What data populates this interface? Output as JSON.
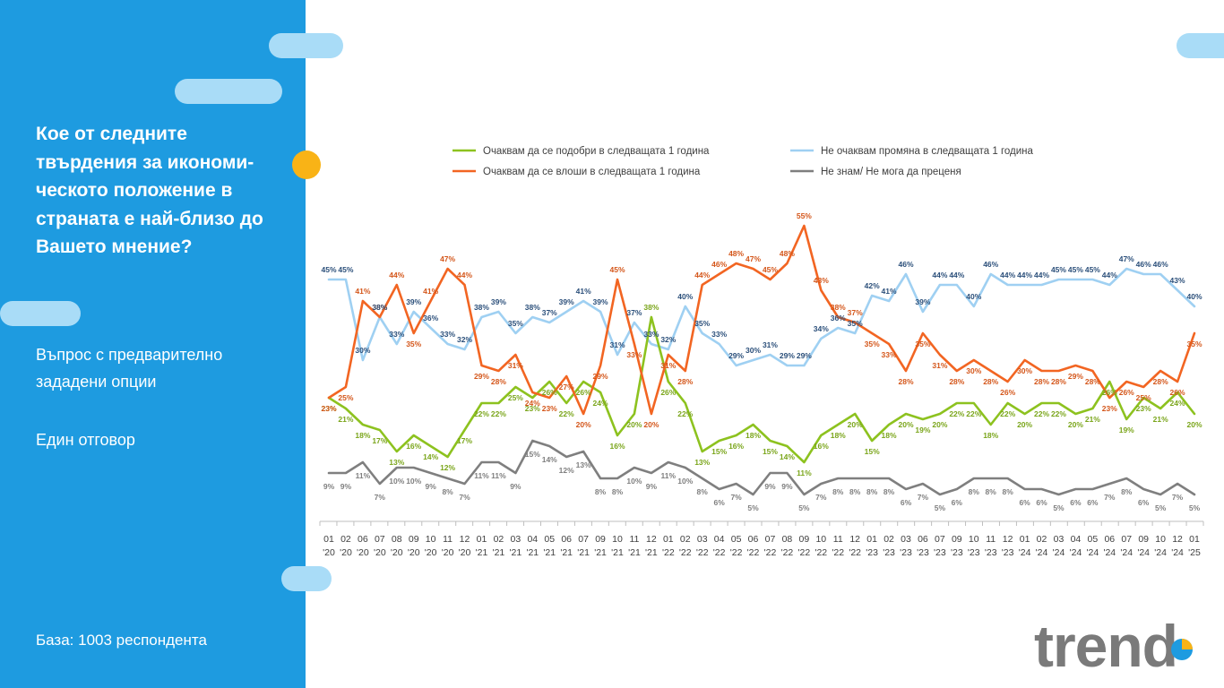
{
  "sidebar": {
    "question": "Кое от следните твърдения за икономи-ческото положение в страната е най-близо до Вашето мнение?",
    "question_lines": [
      "Кое от следните",
      "твърдения за икономи-",
      "ческото положение в",
      "страната е най-близо до",
      "Вашето мнение?"
    ],
    "note1_lines": [
      "Въпрос с предварително",
      "зададени опции"
    ],
    "note2": "Един отговор",
    "base": "База:  1003 респондента"
  },
  "logo": {
    "text": "trend",
    "colors": {
      "text": "#7a7a7a",
      "pie_blue": "#1e9be0",
      "pie_yellow": "#f9b316"
    }
  },
  "colors": {
    "sidebar": "#1e9be0",
    "pill": "#a9dcf7",
    "dot": "#f9b316"
  },
  "chart_data": {
    "type": "line",
    "x_top": [
      "01",
      "02",
      "06",
      "07",
      "08",
      "09",
      "10",
      "11",
      "12",
      "01",
      "02",
      "03",
      "04",
      "05",
      "06",
      "07",
      "09",
      "10",
      "11",
      "12",
      "01",
      "02",
      "03",
      "04",
      "05",
      "06",
      "07",
      "08",
      "09",
      "10",
      "11",
      "12",
      "01",
      "02",
      "03",
      "06",
      "07",
      "09",
      "10",
      "11",
      "12",
      "01",
      "02",
      "03",
      "04",
      "05",
      "06",
      "07",
      "09",
      "10",
      "12",
      "01"
    ],
    "x_bottom": [
      "'20",
      "'20",
      "'20",
      "'20",
      "'20",
      "'20",
      "'20",
      "'20",
      "'20",
      "'21",
      "'21",
      "'21",
      "'21",
      "'21",
      "'21",
      "'21",
      "'21",
      "'21",
      "'21",
      "'21",
      "'22",
      "'22",
      "'22",
      "'22",
      "'22",
      "'22",
      "'22",
      "'22",
      "'22",
      "'22",
      "'22",
      "'22",
      "'23",
      "'23",
      "'23",
      "'23",
      "'23",
      "'23",
      "'23",
      "'23",
      "'23",
      "'24",
      "'24",
      "'24",
      "'24",
      "'24",
      "'24",
      "'24",
      "'24",
      "'24",
      "'24",
      "'25"
    ],
    "ylim": [
      0,
      60
    ],
    "legend_position": "top",
    "series": [
      {
        "name": "Очаквам да се подобри в следващата 1 година",
        "color": "#8dc21f",
        "values": [
          23,
          21,
          18,
          17,
          13,
          16,
          14,
          12,
          17,
          22,
          22,
          25,
          23,
          26,
          22,
          26,
          24,
          16,
          20,
          38,
          26,
          22,
          13,
          15,
          16,
          18,
          15,
          14,
          11,
          16,
          18,
          20,
          15,
          18,
          20,
          19,
          20,
          22,
          22,
          18,
          22,
          20,
          22,
          22,
          20,
          21,
          26,
          19,
          23,
          21,
          24,
          20
        ]
      },
      {
        "name": "Очаквам да се влоши в следващата 1 година",
        "color": "#f26522",
        "values": [
          23,
          25,
          41,
          38,
          44,
          35,
          41,
          47,
          44,
          29,
          28,
          31,
          24,
          23,
          27,
          20,
          29,
          45,
          33,
          20,
          31,
          28,
          44,
          46,
          48,
          47,
          45,
          48,
          55,
          43,
          38,
          37,
          35,
          33,
          28,
          35,
          31,
          28,
          30,
          28,
          26,
          30,
          28,
          28,
          29,
          28,
          23,
          26,
          25,
          28,
          26,
          35
        ]
      },
      {
        "name": "Не очаквам промяна в следващата 1 година",
        "color": "#9fd0f2",
        "values": [
          45,
          45,
          30,
          38,
          33,
          39,
          36,
          33,
          32,
          38,
          39,
          35,
          38,
          37,
          39,
          41,
          39,
          31,
          37,
          33,
          32,
          40,
          35,
          33,
          29,
          30,
          31,
          29,
          29,
          34,
          36,
          35,
          42,
          41,
          46,
          39,
          44,
          44,
          40,
          46,
          44,
          44,
          44,
          45,
          45,
          45,
          44,
          47,
          46,
          46,
          43,
          40
        ]
      },
      {
        "name": "Не знам/ Не мога да преценя",
        "color": "#7f7f7f",
        "values": [
          9,
          9,
          11,
          7,
          10,
          10,
          9,
          8,
          7,
          11,
          11,
          9,
          15,
          14,
          12,
          13,
          8,
          8,
          10,
          9,
          11,
          10,
          8,
          6,
          7,
          5,
          9,
          9,
          5,
          7,
          8,
          8,
          8,
          8,
          6,
          7,
          5,
          6,
          8,
          8,
          8,
          6,
          6,
          5,
          6,
          6,
          7,
          8,
          6,
          5,
          7,
          5
        ]
      }
    ]
  }
}
